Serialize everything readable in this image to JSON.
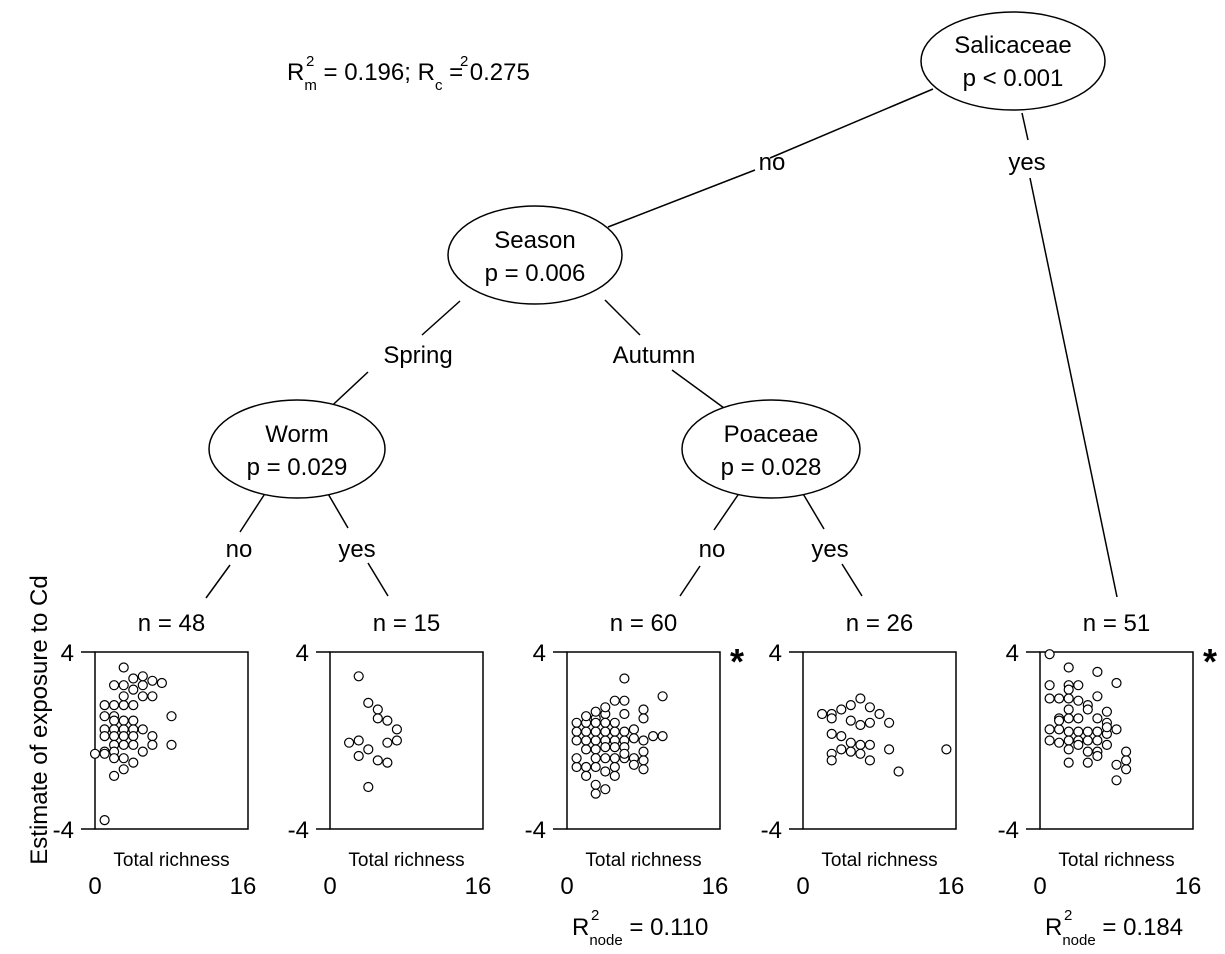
{
  "fit_stats": {
    "rm_label": "R",
    "rm_sub": "m",
    "rm_sup": "2",
    "rm_value": " = 0.196; ",
    "rc_label": "R",
    "rc_sub": "c",
    "rc_sup": "2",
    "rc_value": " = 0.275"
  },
  "y_axis_label": "Estimate of exposure to Cd",
  "nodes": [
    {
      "id": "salicaceae",
      "name": "Salicaceae",
      "p": "p < 0.001"
    },
    {
      "id": "season",
      "name": "Season",
      "p": "p = 0.006"
    },
    {
      "id": "worm",
      "name": "Worm",
      "p": "p = 0.029"
    },
    {
      "id": "poaceae",
      "name": "Poaceae",
      "p": "p = 0.028"
    }
  ],
  "edges": [
    {
      "id": "salicaceae-no",
      "label": "no"
    },
    {
      "id": "salicaceae-yes",
      "label": "yes"
    },
    {
      "id": "season-spring",
      "label": "Spring"
    },
    {
      "id": "season-autumn",
      "label": "Autumn"
    },
    {
      "id": "worm-no",
      "label": "no"
    },
    {
      "id": "worm-yes",
      "label": "yes"
    },
    {
      "id": "poaceae-no",
      "label": "no"
    },
    {
      "id": "poaceae-yes",
      "label": "yes"
    }
  ],
  "chart_data": [
    {
      "type": "scatter",
      "id": "leaf-1",
      "n_label": "n = 48",
      "xlabel": "Total richness",
      "xlim": [
        0,
        16
      ],
      "ylim": [
        -4,
        4
      ],
      "x_ticks": [
        "0",
        "16"
      ],
      "y_ticks": [
        "4",
        "-4"
      ],
      "significant": false,
      "points": [
        [
          1,
          1.1
        ],
        [
          2,
          1.1
        ],
        [
          1,
          1.6
        ],
        [
          2,
          1.6
        ],
        [
          3,
          1.6
        ],
        [
          4,
          1.6
        ],
        [
          3,
          2.0
        ],
        [
          5,
          2.0
        ],
        [
          6,
          2.0
        ],
        [
          4,
          2.3
        ],
        [
          2,
          2.5
        ],
        [
          3,
          2.5
        ],
        [
          5,
          2.5
        ],
        [
          7,
          2.6
        ],
        [
          4,
          2.8
        ],
        [
          2,
          0.9
        ],
        [
          3,
          0.9
        ],
        [
          4,
          0.9
        ],
        [
          1,
          0.5
        ],
        [
          2,
          0.5
        ],
        [
          3,
          0.5
        ],
        [
          4,
          0.5
        ],
        [
          5,
          0.5
        ],
        [
          1,
          0.2
        ],
        [
          2,
          0.2
        ],
        [
          3,
          0.2
        ],
        [
          6,
          0.2
        ],
        [
          4,
          0.2
        ],
        [
          2,
          -0.2
        ],
        [
          3,
          -0.2
        ],
        [
          4,
          -0.2
        ],
        [
          6,
          -0.2
        ],
        [
          1,
          -0.5
        ],
        [
          2,
          -0.5
        ],
        [
          5,
          -0.5
        ],
        [
          0,
          -0.6
        ],
        [
          1,
          -0.6
        ],
        [
          2,
          -0.8
        ],
        [
          3,
          -0.8
        ],
        [
          4,
          -1.0
        ],
        [
          3,
          -1.3
        ],
        [
          2,
          -1.6
        ],
        [
          1,
          -3.6
        ],
        [
          8,
          -0.2
        ],
        [
          8,
          1.1
        ],
        [
          3,
          3.3
        ],
        [
          5,
          2.9
        ],
        [
          6,
          2.7
        ]
      ]
    },
    {
      "type": "scatter",
      "id": "leaf-2",
      "n_label": "n = 15",
      "xlabel": "Total richness",
      "xlim": [
        0,
        16
      ],
      "ylim": [
        -4,
        4
      ],
      "x_ticks": [
        "0",
        "16"
      ],
      "y_ticks": [
        "4",
        "-4"
      ],
      "significant": false,
      "points": [
        [
          3,
          2.9
        ],
        [
          4,
          1.7
        ],
        [
          5,
          1.4
        ],
        [
          5,
          1.0
        ],
        [
          6,
          0.9
        ],
        [
          3,
          0.0
        ],
        [
          6,
          -0.1
        ],
        [
          7,
          0.0
        ],
        [
          2,
          -0.1
        ],
        [
          4,
          -0.4
        ],
        [
          3,
          -0.7
        ],
        [
          5,
          -0.9
        ],
        [
          6,
          -1.0
        ],
        [
          7,
          0.5
        ],
        [
          4,
          -2.1
        ]
      ]
    },
    {
      "type": "scatter",
      "id": "leaf-3",
      "n_label": "n = 60",
      "xlabel": "Total richness",
      "xlim": [
        0,
        16
      ],
      "ylim": [
        -4,
        4
      ],
      "x_ticks": [
        "0",
        "16"
      ],
      "y_ticks": [
        "4",
        "-4"
      ],
      "significant": true,
      "r2_label": "R",
      "r2_sub": "node",
      "r2_sup": "2",
      "r2_value": " = 0.110",
      "points": [
        [
          6,
          2.8
        ],
        [
          10,
          2.0
        ],
        [
          6,
          1.8
        ],
        [
          8,
          1.4
        ],
        [
          3,
          1.0
        ],
        [
          4,
          1.2
        ],
        [
          6,
          1.2
        ],
        [
          8,
          1.0
        ],
        [
          1,
          0.8
        ],
        [
          2,
          0.8
        ],
        [
          3,
          0.8
        ],
        [
          4,
          0.8
        ],
        [
          5,
          0.8
        ],
        [
          6,
          0.4
        ],
        [
          7,
          0.5
        ],
        [
          1,
          0.4
        ],
        [
          2,
          0.4
        ],
        [
          3,
          0.4
        ],
        [
          4,
          0.4
        ],
        [
          5,
          0.4
        ],
        [
          1,
          0.0
        ],
        [
          2,
          0.0
        ],
        [
          3,
          0.0
        ],
        [
          4,
          0.0
        ],
        [
          5,
          0.0
        ],
        [
          6,
          0.0
        ],
        [
          7,
          0.1
        ],
        [
          8,
          0.0
        ],
        [
          9,
          0.2
        ],
        [
          10,
          0.2
        ],
        [
          2,
          -0.4
        ],
        [
          3,
          -0.4
        ],
        [
          4,
          -0.3
        ],
        [
          5,
          -0.3
        ],
        [
          6,
          -0.3
        ],
        [
          8,
          -0.5
        ],
        [
          3,
          -0.8
        ],
        [
          4,
          -0.8
        ],
        [
          5,
          -0.8
        ],
        [
          6,
          -0.8
        ],
        [
          7,
          -0.8
        ],
        [
          8,
          -0.9
        ],
        [
          1,
          -1.2
        ],
        [
          2,
          -1.2
        ],
        [
          3,
          -1.2
        ],
        [
          4,
          -1.4
        ],
        [
          5,
          -1.6
        ],
        [
          2,
          -1.6
        ],
        [
          3,
          -2.0
        ],
        [
          4,
          -2.2
        ],
        [
          3,
          -2.4
        ],
        [
          7,
          -1.1
        ],
        [
          8,
          -1.3
        ],
        [
          6,
          -0.6
        ],
        [
          5,
          -1.2
        ],
        [
          1,
          -0.8
        ],
        [
          3,
          1.3
        ],
        [
          4,
          1.5
        ],
        [
          2,
          1.1
        ],
        [
          5,
          1.8
        ]
      ]
    },
    {
      "type": "scatter",
      "id": "leaf-4",
      "n_label": "n = 26",
      "xlabel": "Total richness",
      "xlim": [
        0,
        16
      ],
      "ylim": [
        -4,
        4
      ],
      "x_ticks": [
        "0",
        "16"
      ],
      "y_ticks": [
        "4",
        "-4"
      ],
      "significant": false,
      "points": [
        [
          2,
          1.2
        ],
        [
          3,
          1.2
        ],
        [
          3,
          1.0
        ],
        [
          5,
          0.9
        ],
        [
          6,
          0.7
        ],
        [
          7,
          0.8
        ],
        [
          4,
          1.4
        ],
        [
          5,
          1.6
        ],
        [
          6,
          1.9
        ],
        [
          7,
          1.5
        ],
        [
          8,
          1.2
        ],
        [
          9,
          0.8
        ],
        [
          3,
          0.3
        ],
        [
          4,
          0.2
        ],
        [
          5,
          -0.1
        ],
        [
          6,
          -0.2
        ],
        [
          7,
          -0.2
        ],
        [
          9,
          -0.4
        ],
        [
          3,
          -0.6
        ],
        [
          4,
          -0.4
        ],
        [
          5,
          -0.5
        ],
        [
          6,
          -0.6
        ],
        [
          15,
          -0.4
        ],
        [
          3,
          -0.9
        ],
        [
          7,
          -0.9
        ],
        [
          10,
          -1.4
        ]
      ]
    },
    {
      "type": "scatter",
      "id": "leaf-5",
      "n_label": "n = 51",
      "xlabel": "Total richness",
      "xlim": [
        0,
        16
      ],
      "ylim": [
        -4,
        4
      ],
      "x_ticks": [
        "0",
        "16"
      ],
      "y_ticks": [
        "4",
        "-4"
      ],
      "significant": true,
      "r2_label": "R",
      "r2_sub": "node",
      "r2_sup": "2",
      "r2_value": " = 0.184",
      "points": [
        [
          1,
          3.9
        ],
        [
          3,
          3.3
        ],
        [
          6,
          3.1
        ],
        [
          3,
          2.5
        ],
        [
          4,
          2.5
        ],
        [
          1,
          2.5
        ],
        [
          3,
          2.3
        ],
        [
          8,
          2.6
        ],
        [
          1,
          1.9
        ],
        [
          2,
          1.9
        ],
        [
          3,
          1.9
        ],
        [
          4,
          1.8
        ],
        [
          5,
          1.6
        ],
        [
          6,
          2.0
        ],
        [
          7,
          1.3
        ],
        [
          3,
          1.4
        ],
        [
          5,
          1.4
        ],
        [
          2,
          1.0
        ],
        [
          3,
          1.0
        ],
        [
          4,
          1.0
        ],
        [
          6,
          1.0
        ],
        [
          7,
          0.8
        ],
        [
          8,
          0.5
        ],
        [
          1,
          0.5
        ],
        [
          2,
          0.5
        ],
        [
          3,
          0.4
        ],
        [
          4,
          0.4
        ],
        [
          5,
          0.4
        ],
        [
          6,
          0.4
        ],
        [
          7,
          0.3
        ],
        [
          3,
          0.0
        ],
        [
          4,
          0.0
        ],
        [
          5,
          0.0
        ],
        [
          6,
          0.0
        ],
        [
          7,
          -0.2
        ],
        [
          1,
          0.0
        ],
        [
          2,
          -0.1
        ],
        [
          3,
          -0.4
        ],
        [
          5,
          -0.5
        ],
        [
          6,
          -0.5
        ],
        [
          6,
          -0.7
        ],
        [
          9,
          -0.5
        ],
        [
          3,
          -1.0
        ],
        [
          5,
          -1.0
        ],
        [
          8,
          -1.1
        ],
        [
          9,
          -1.3
        ],
        [
          8,
          -1.8
        ],
        [
          9,
          -0.9
        ],
        [
          4,
          -0.2
        ],
        [
          2,
          0.9
        ],
        [
          7,
          0.6
        ]
      ]
    }
  ]
}
